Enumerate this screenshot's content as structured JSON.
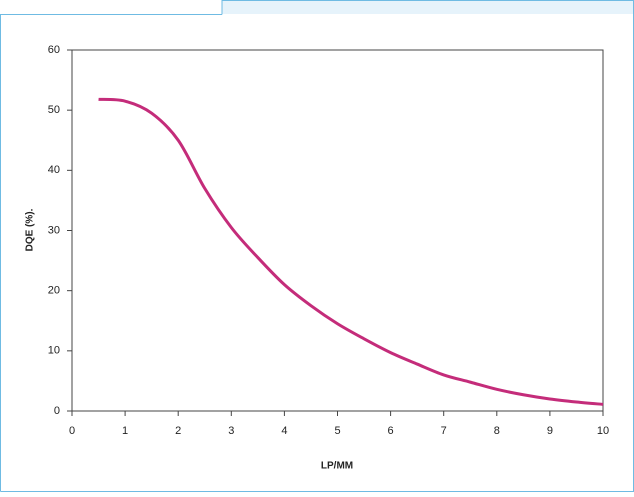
{
  "chart_data": {
    "type": "line",
    "x_label": "LP/MM",
    "y_label": "DQE (%).",
    "x": [
      0.5,
      1,
      1.5,
      2,
      2.5,
      3,
      3.5,
      4,
      4.5,
      5,
      5.5,
      6,
      6.5,
      7,
      7.5,
      8,
      8.5,
      9,
      9.5,
      10
    ],
    "series": [
      {
        "color": "#c42c7a",
        "values": [
          51.8,
          51.5,
          49.5,
          45,
          37,
          30.5,
          25.5,
          21,
          17.5,
          14.5,
          12,
          9.7,
          7.8,
          6,
          4.8,
          3.6,
          2.7,
          2,
          1.5,
          1.1
        ]
      }
    ],
    "xlim": [
      0,
      10
    ],
    "xticks": [
      0,
      1,
      2,
      3,
      4,
      5,
      6,
      7,
      8,
      9,
      10
    ],
    "ylim": [
      0,
      60
    ],
    "yticks": [
      0,
      10,
      20,
      30,
      40,
      50,
      60
    ],
    "grid": false
  }
}
